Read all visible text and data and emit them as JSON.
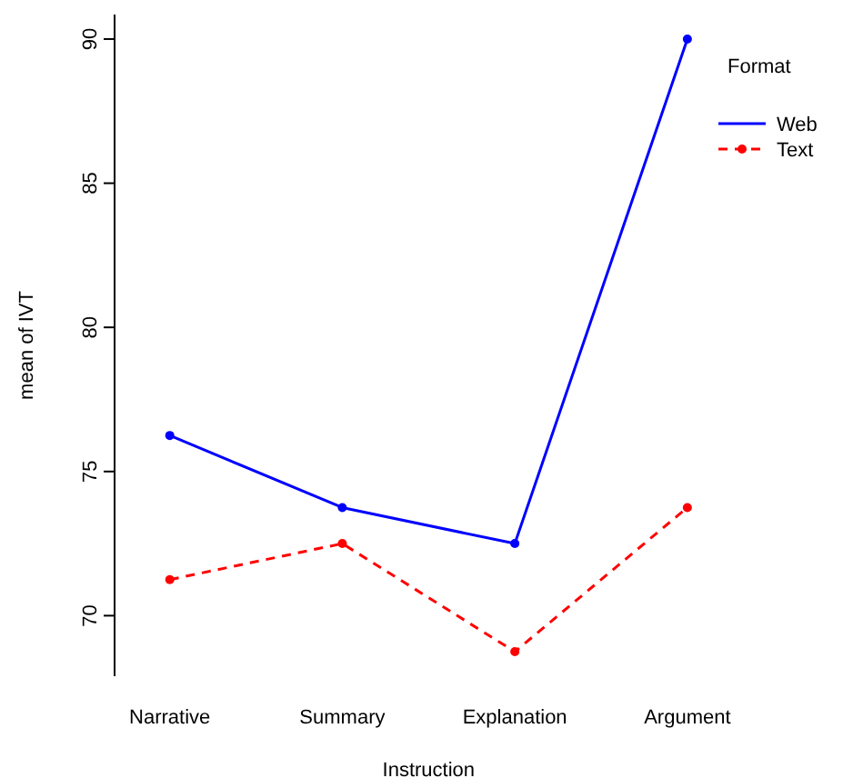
{
  "chart_data": {
    "type": "line",
    "xlabel": "Instruction",
    "ylabel": "mean of  IVT",
    "legend_title": "Format",
    "categories": [
      "Narrative",
      "Summary",
      "Explanation",
      "Argument"
    ],
    "series": [
      {
        "name": "Web",
        "color": "#0000ff",
        "values": [
          76.25,
          73.75,
          72.5,
          90
        ],
        "line_style": "solid"
      },
      {
        "name": "Text",
        "color": "#ff0000",
        "values": [
          71.25,
          72.5,
          68.75,
          73.75
        ],
        "line_style": "dashed"
      }
    ],
    "ylim": [
      67.9,
      90.85
    ],
    "yticks": [
      70,
      75,
      80,
      85,
      90
    ],
    "marker": "circle",
    "legend": "top right",
    "grid": false
  }
}
